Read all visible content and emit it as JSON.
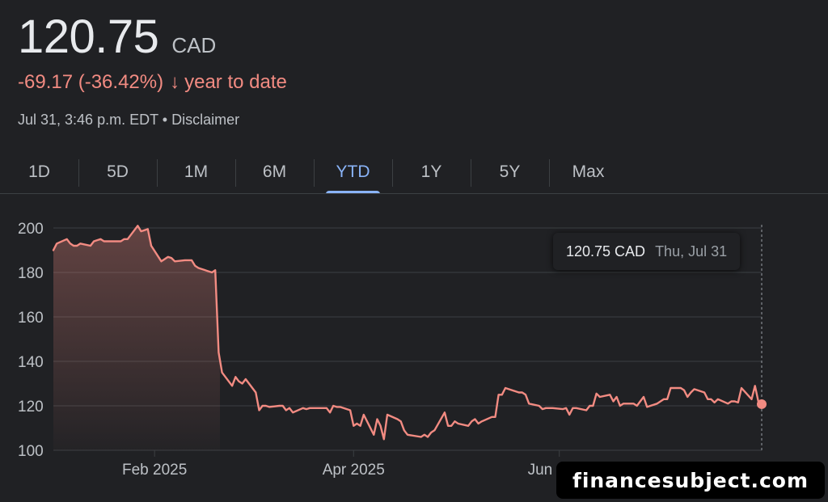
{
  "header": {
    "price": "120.75",
    "currency": "CAD",
    "change": "-69.17 (-36.42%)",
    "change_arrow": "↓",
    "period": "year to date",
    "timestamp": "Jul 31, 3:46 p.m. EDT",
    "separator": "•",
    "disclaimer": "Disclaimer"
  },
  "tabs": [
    {
      "label": "1D"
    },
    {
      "label": "5D"
    },
    {
      "label": "1M"
    },
    {
      "label": "6M"
    },
    {
      "label": "YTD",
      "active": true
    },
    {
      "label": "1Y"
    },
    {
      "label": "5Y"
    },
    {
      "label": "Max"
    }
  ],
  "tooltip": {
    "price": "120.75 CAD",
    "date": "Thu, Jul 31"
  },
  "watermark": "financesubject.com",
  "colors": {
    "line": "#f28b82",
    "active_tab": "#8ab4f8",
    "background": "#202124",
    "grid": "#3c4043"
  },
  "chart_data": {
    "type": "area",
    "x_start": "2025-01-02",
    "x_end": "2025-07-31",
    "ylim": [
      100,
      200
    ],
    "yticks": [
      100,
      120,
      140,
      160,
      180,
      200
    ],
    "xticks": [
      {
        "label": "Feb 2025",
        "date": "2025-02-01"
      },
      {
        "label": "Apr 2025",
        "date": "2025-04-01"
      },
      {
        "label": "Jun 2025",
        "date": "2025-06-01"
      }
    ],
    "grid": true,
    "series": [
      {
        "x": [
          "2025-01-02",
          "2025-01-03",
          "2025-01-06",
          "2025-01-07",
          "2025-01-08",
          "2025-01-09",
          "2025-01-10",
          "2025-01-13",
          "2025-01-14",
          "2025-01-15",
          "2025-01-16",
          "2025-01-17",
          "2025-01-20",
          "2025-01-21",
          "2025-01-22",
          "2025-01-23",
          "2025-01-24",
          "2025-01-27",
          "2025-01-28",
          "2025-01-29",
          "2025-01-30",
          "2025-01-31",
          "2025-02-03",
          "2025-02-04",
          "2025-02-05",
          "2025-02-06",
          "2025-02-07",
          "2025-02-10",
          "2025-02-11",
          "2025-02-12",
          "2025-02-13",
          "2025-02-14",
          "2025-02-18",
          "2025-02-19",
          "2025-02-20",
          "2025-02-21",
          "2025-02-24",
          "2025-02-25",
          "2025-02-26",
          "2025-02-27",
          "2025-02-28",
          "2025-03-03",
          "2025-03-04",
          "2025-03-05",
          "2025-03-06",
          "2025-03-07",
          "2025-03-10",
          "2025-03-11",
          "2025-03-12",
          "2025-03-13",
          "2025-03-14",
          "2025-03-17",
          "2025-03-18",
          "2025-03-19",
          "2025-03-20",
          "2025-03-21",
          "2025-03-24",
          "2025-03-25",
          "2025-03-26",
          "2025-03-27",
          "2025-03-28",
          "2025-03-31",
          "2025-04-01",
          "2025-04-02",
          "2025-04-03",
          "2025-04-04",
          "2025-04-07",
          "2025-04-08",
          "2025-04-09",
          "2025-04-10",
          "2025-04-11",
          "2025-04-14",
          "2025-04-15",
          "2025-04-16",
          "2025-04-17",
          "2025-04-21",
          "2025-04-22",
          "2025-04-23",
          "2025-04-24",
          "2025-04-25",
          "2025-04-28",
          "2025-04-29",
          "2025-04-30",
          "2025-05-01",
          "2025-05-02",
          "2025-05-05",
          "2025-05-06",
          "2025-05-07",
          "2025-05-08",
          "2025-05-09",
          "2025-05-12",
          "2025-05-13",
          "2025-05-14",
          "2025-05-15",
          "2025-05-16",
          "2025-05-20",
          "2025-05-21",
          "2025-05-22",
          "2025-05-23",
          "2025-05-26",
          "2025-05-27",
          "2025-05-28",
          "2025-05-29",
          "2025-05-30",
          "2025-06-02",
          "2025-06-03",
          "2025-06-04",
          "2025-06-05",
          "2025-06-06",
          "2025-06-09",
          "2025-06-10",
          "2025-06-11",
          "2025-06-12",
          "2025-06-13",
          "2025-06-16",
          "2025-06-17",
          "2025-06-18",
          "2025-06-19",
          "2025-06-20",
          "2025-06-23",
          "2025-06-24",
          "2025-06-25",
          "2025-06-26",
          "2025-06-27",
          "2025-06-30",
          "2025-07-02",
          "2025-07-03",
          "2025-07-04",
          "2025-07-07",
          "2025-07-08",
          "2025-07-09",
          "2025-07-10",
          "2025-07-11",
          "2025-07-14",
          "2025-07-15",
          "2025-07-16",
          "2025-07-17",
          "2025-07-18",
          "2025-07-21",
          "2025-07-22",
          "2025-07-23",
          "2025-07-24",
          "2025-07-25",
          "2025-07-28",
          "2025-07-29",
          "2025-07-30",
          "2025-07-31"
        ],
        "y": [
          190,
          193,
          195,
          193,
          192,
          192,
          193,
          192,
          194,
          194.5,
          195,
          194,
          194,
          194,
          194,
          195,
          195,
          201,
          198.5,
          199,
          199.5,
          192,
          185,
          186,
          187,
          186.5,
          185,
          185.5,
          185.5,
          185.5,
          183,
          182,
          180,
          181,
          144,
          135,
          129,
          133,
          131,
          130,
          132,
          126,
          118,
          120,
          120,
          119.5,
          120,
          120,
          118,
          119,
          117,
          119,
          118.5,
          119,
          119,
          119,
          119,
          117,
          120,
          119.5,
          119.5,
          118,
          111,
          112,
          111,
          116,
          107,
          114,
          111,
          105,
          116,
          114,
          113,
          109,
          107,
          106,
          107,
          106,
          108,
          109,
          117,
          111,
          111,
          113,
          112,
          111,
          113,
          114,
          112,
          113,
          115,
          115,
          125,
          125,
          128,
          126,
          126,
          125,
          121,
          120,
          118.5,
          119,
          119,
          119,
          118.5,
          119,
          116,
          119,
          119,
          118,
          120,
          120,
          125.5,
          124,
          125,
          122,
          124,
          120,
          121,
          121,
          120,
          122,
          124,
          119.5,
          121,
          123,
          123,
          128,
          128,
          127,
          124,
          126,
          127.5,
          126,
          123,
          123,
          121.5,
          123,
          121,
          122,
          122,
          121.5,
          128,
          123,
          129,
          122,
          120.75
        ]
      }
    ]
  }
}
